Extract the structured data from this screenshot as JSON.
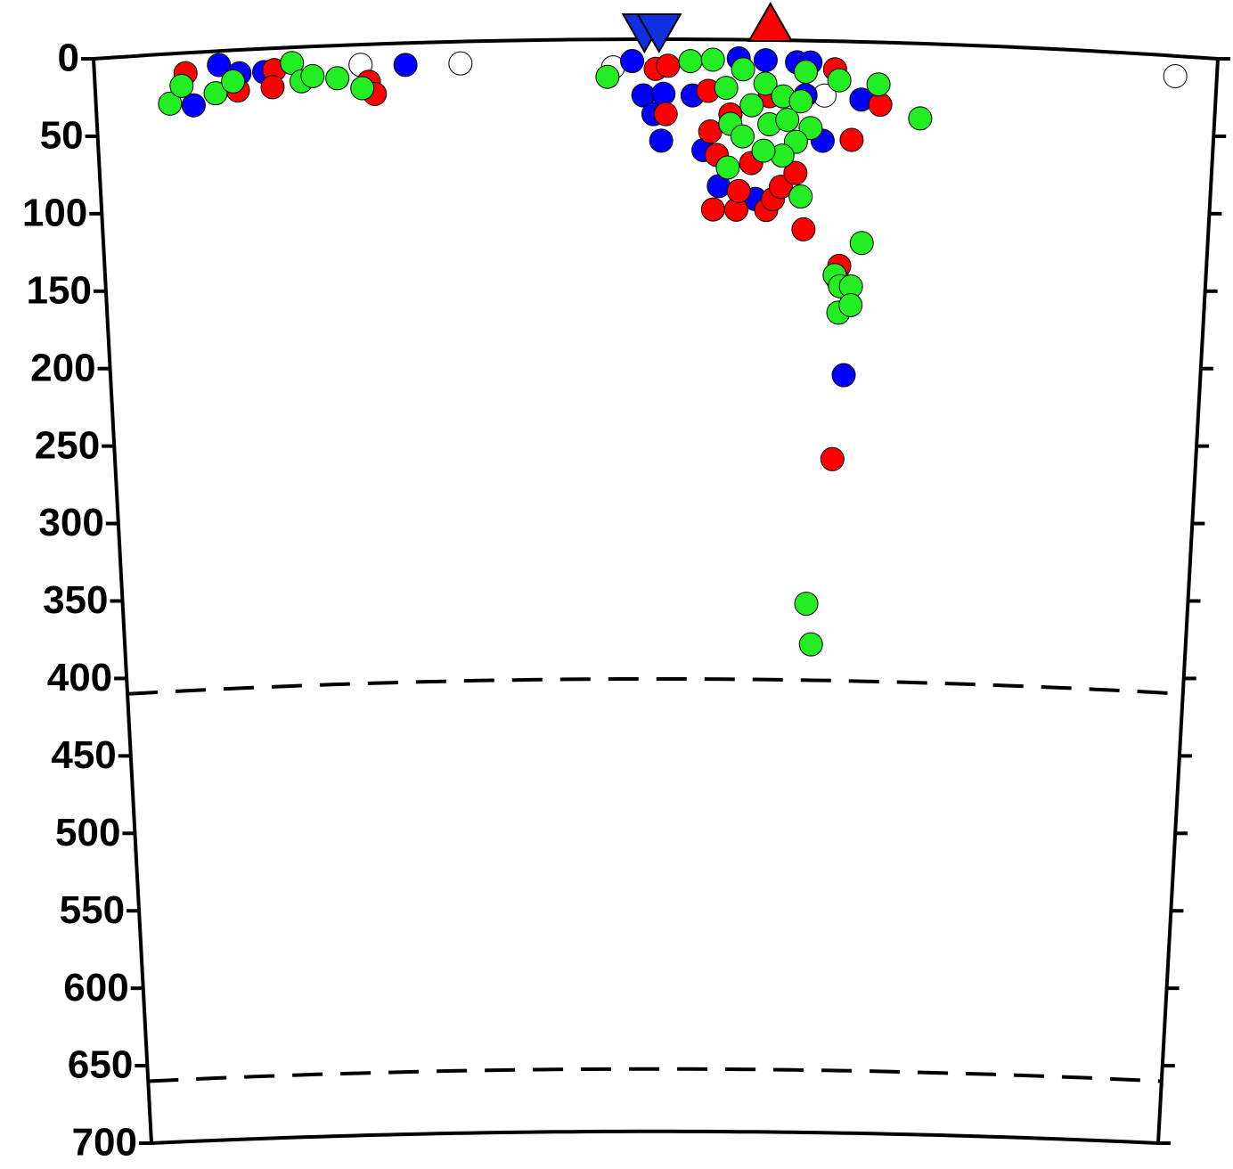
{
  "chart_data": {
    "type": "scatter",
    "ylim": [
      0,
      700
    ],
    "yticks": [
      0,
      50,
      100,
      150,
      200,
      250,
      300,
      350,
      400,
      450,
      500,
      550,
      600,
      650,
      700
    ],
    "xlim": [
      0,
      100
    ],
    "discontinuities": [
      410,
      660
    ],
    "stations": [
      {
        "x": 49,
        "color": "#1030e0",
        "shape": "down"
      },
      {
        "x": 50.3,
        "color": "#1030e0",
        "shape": "down"
      },
      {
        "x": 60.2,
        "color": "#ff0000",
        "shape": "up"
      }
    ],
    "series": [
      {
        "color": "#ffffff",
        "x": [
          23.7,
          32.6,
          46.2,
          65.1,
          96.3
        ],
        "values": [
          13,
          14,
          18,
          35,
          13
        ]
      },
      {
        "color": "#0000ff",
        "x": [
          11.1,
          12.9,
          15.1,
          8.7,
          27.7,
          47.9,
          48.9,
          49.8,
          50.7,
          50.5,
          53.3,
          54.3,
          55.7,
          57.4,
          59.8,
          62.6,
          63.8,
          63.4,
          65,
          68.4,
          67.3,
          59
        ],
        "values": [
          9,
          15,
          15,
          34,
          14,
          14,
          36,
          48,
          35,
          65,
          36,
          71,
          94,
          12,
          13,
          14,
          14,
          35,
          64,
          37,
          214,
          102
        ]
      },
      {
        "color": "#ff0000",
        "x": [
          8.1,
          12.7,
          16,
          15.8,
          24.4,
          24.9,
          50,
          51.1,
          50.9,
          54.7,
          54.9,
          55.2,
          57.3,
          57.5,
          55.5,
          56.7,
          58.6,
          60,
          60.6,
          61.3,
          62.6,
          60.2,
          63.4,
          66,
          67.6,
          70.1,
          66.7,
          66.4,
          66.6
        ],
        "values": [
          13,
          26,
          14,
          25,
          24,
          32,
          19,
          17,
          48,
          33,
          59,
          109,
          109,
          97,
          74,
          48,
          79,
          109,
          102,
          94,
          85,
          36,
          121,
          18,
          63,
          40,
          144,
          268,
          153
        ]
      },
      {
        "color": "#22ee22",
        "x": [
          6.6,
          7.7,
          10.7,
          12.3,
          17.6,
          18.4,
          19.4,
          21.6,
          23.8,
          45.7,
          53.1,
          55.1,
          56.3,
          56.7,
          57.8,
          58.6,
          59.8,
          60.2,
          61.4,
          61.8,
          63,
          63.4,
          63.9,
          62.6,
          61.4,
          59.7,
          57.8,
          56.5,
          63.1,
          66.4,
          69.9,
          73.7,
          68.7,
          66.3,
          66.8,
          67.8,
          66.7,
          67.8,
          64.2,
          64.7
        ],
        "values": [
          32,
          21,
          27,
          20,
          10,
          22,
          19,
          21,
          28,
          24,
          14,
          13,
          31,
          54,
          19,
          42,
          28,
          54,
          36,
          51,
          39,
          20,
          56,
          65,
          74,
          71,
          62,
          82,
          100,
          25,
          27,
          48,
          129,
          150,
          157,
          157,
          174,
          169,
          361,
          387
        ]
      }
    ]
  }
}
